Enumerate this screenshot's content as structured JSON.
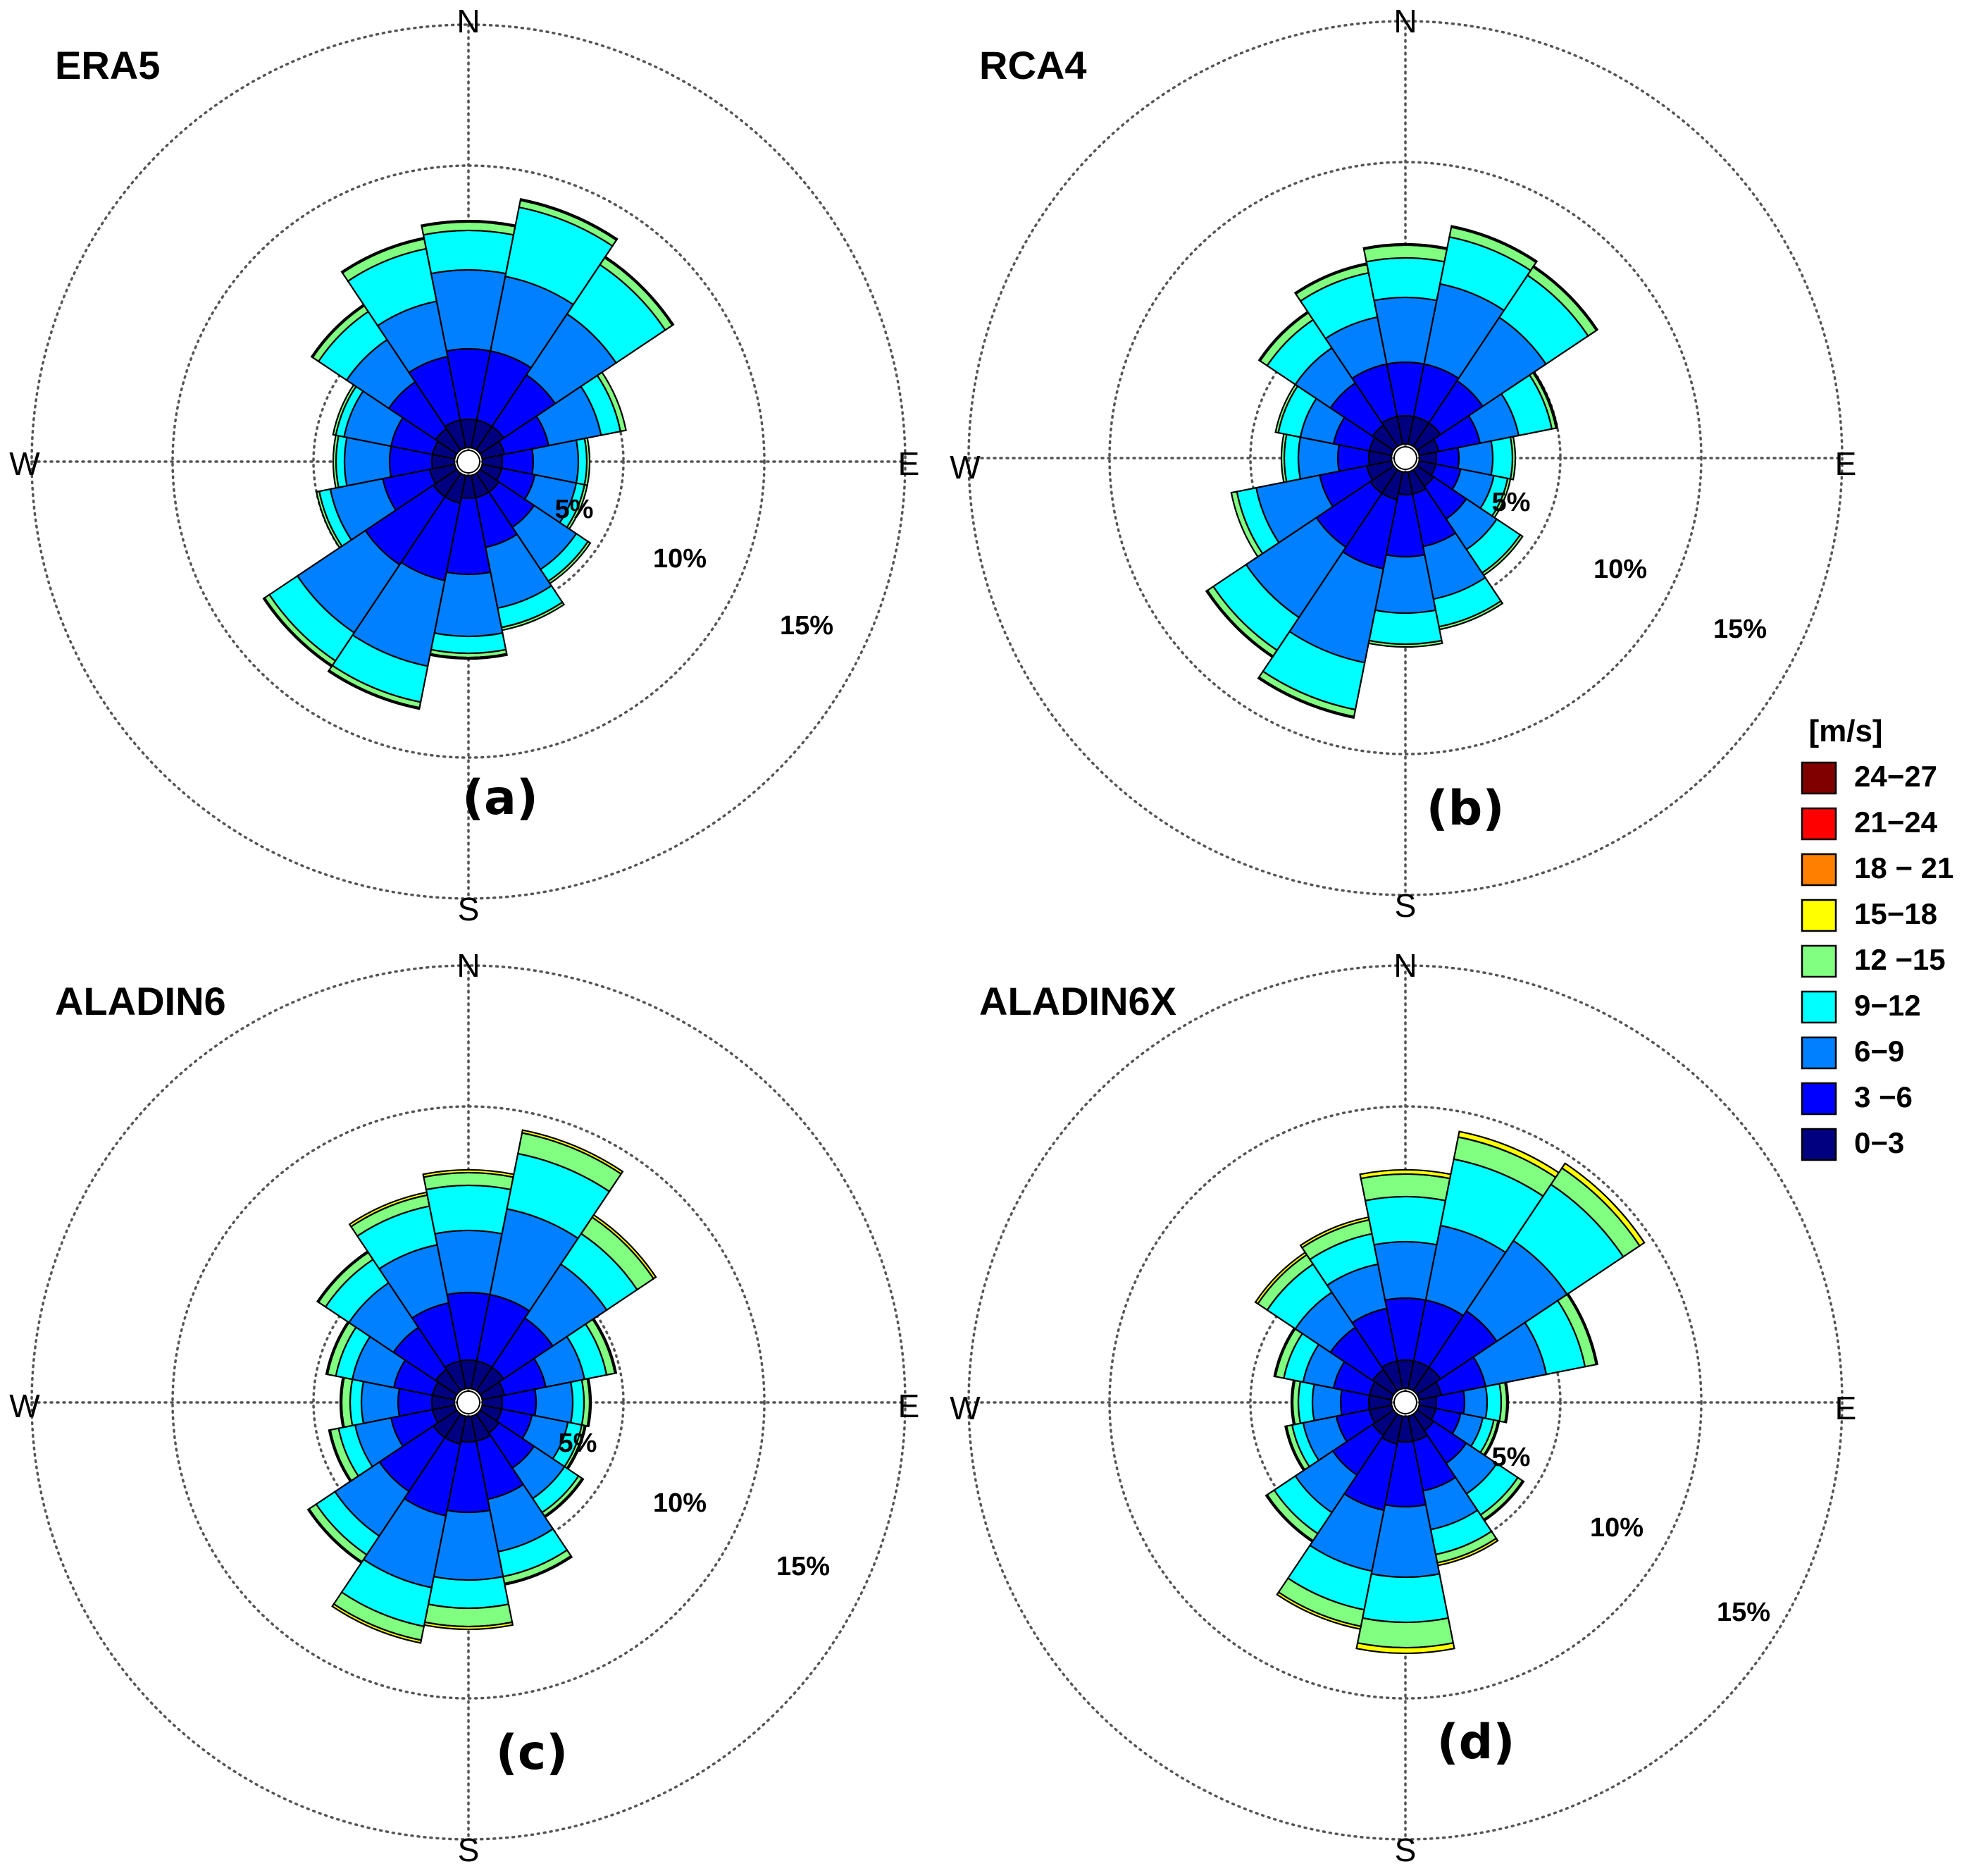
{
  "chart_data": [
    {
      "type": "windrose",
      "title": "ERA5",
      "panel_label": "(a)",
      "directions": [
        "N",
        "NNE",
        "NE",
        "ENE",
        "E",
        "ESE",
        "SE",
        "SSE",
        "S",
        "SSW",
        "SW",
        "WSW",
        "W",
        "WNW",
        "NW",
        "NNW"
      ],
      "compass_labels": [
        "N",
        "E",
        "S",
        "W"
      ],
      "ring_labels": [
        "5%",
        "10%",
        "15%"
      ],
      "radial_max_percent": 15,
      "speed_bins": [
        "0-3",
        "3-6",
        "6-9",
        "9-12",
        "12-15",
        "15-18",
        "18-21",
        "21-24",
        "24-27"
      ],
      "cumulative_percent": [
        [
          1.0,
          3.5,
          6.3,
          7.7,
          8.0,
          8.05,
          8.05,
          8.05,
          8.05
        ],
        [
          1.0,
          3.5,
          6.2,
          8.7,
          8.95,
          9.0,
          9.0,
          9.0,
          9.0
        ],
        [
          1.0,
          3.2,
          5.8,
          7.9,
          8.2,
          8.25,
          8.25,
          8.25,
          8.25
        ],
        [
          0.8,
          2.4,
          4.3,
          5.0,
          5.2,
          5.2,
          5.2,
          5.2,
          5.2
        ],
        [
          0.7,
          1.8,
          3.4,
          3.7,
          3.8,
          3.8,
          3.8,
          3.8,
          3.8
        ],
        [
          0.7,
          1.9,
          3.4,
          3.7,
          3.8,
          3.8,
          3.8,
          3.8,
          3.8
        ],
        [
          0.8,
          2.3,
          4.1,
          4.6,
          4.7,
          4.7,
          4.7,
          4.7,
          4.7
        ],
        [
          0.8,
          2.6,
          4.8,
          5.5,
          5.6,
          5.6,
          5.6,
          5.6,
          5.6
        ],
        [
          0.8,
          3.5,
          5.7,
          6.3,
          6.45,
          6.5,
          6.5,
          6.5,
          6.5
        ],
        [
          1.0,
          3.8,
          6.9,
          8.2,
          8.4,
          8.45,
          8.45,
          8.45,
          8.45
        ],
        [
          1.0,
          3.9,
          6.8,
          8.0,
          8.2,
          8.25,
          8.25,
          8.25,
          8.25
        ],
        [
          0.9,
          2.6,
          4.5,
          4.9,
          5.0,
          5.0,
          5.0,
          5.0,
          5.0
        ],
        [
          0.8,
          2.3,
          3.9,
          4.2,
          4.3,
          4.3,
          4.3,
          4.3,
          4.3
        ],
        [
          0.8,
          2.3,
          4.0,
          4.3,
          4.4,
          4.4,
          4.4,
          4.4,
          4.4
        ],
        [
          0.9,
          2.9,
          4.7,
          5.9,
          6.15,
          6.2,
          6.2,
          6.2,
          6.2
        ],
        [
          1.0,
          3.3,
          5.3,
          7.2,
          7.55,
          7.6,
          7.6,
          7.6,
          7.6
        ]
      ]
    },
    {
      "type": "windrose",
      "title": "RCA4",
      "panel_label": "(b)",
      "directions": [
        "N",
        "NNE",
        "NE",
        "ENE",
        "E",
        "ESE",
        "SE",
        "SSE",
        "S",
        "SSW",
        "SW",
        "WSW",
        "W",
        "WNW",
        "NW",
        "NNW"
      ],
      "compass_labels": [
        "N",
        "E",
        "S",
        "W"
      ],
      "ring_labels": [
        "5%",
        "10%",
        "15%"
      ],
      "radial_max_percent": 15,
      "speed_bins": [
        "0-3",
        "3-6",
        "6-9",
        "9-12",
        "12-15",
        "15-18",
        "18-21",
        "21-24",
        "24-27"
      ],
      "cumulative_percent": [
        [
          1.0,
          2.9,
          5.2,
          6.6,
          7.05,
          7.1,
          7.1,
          7.1,
          7.1
        ],
        [
          1.0,
          2.9,
          5.8,
          7.5,
          7.85,
          7.9,
          7.9,
          7.9,
          7.9
        ],
        [
          1.0,
          2.8,
          5.5,
          7.3,
          7.65,
          7.7,
          7.7,
          7.7,
          7.7
        ],
        [
          0.7,
          2.2,
          3.6,
          4.8,
          4.95,
          5.0,
          5.0,
          5.0,
          5.0
        ],
        [
          0.6,
          1.4,
          2.6,
          3.3,
          3.4,
          3.4,
          3.4,
          3.4,
          3.4
        ],
        [
          0.6,
          1.5,
          2.7,
          3.2,
          3.3,
          3.3,
          3.3,
          3.3,
          3.3
        ],
        [
          0.7,
          2.1,
          3.4,
          4.4,
          4.5,
          4.5,
          4.5,
          4.5,
          4.5
        ],
        [
          0.8,
          2.7,
          4.6,
          5.6,
          5.7,
          5.7,
          5.7,
          5.7,
          5.7
        ],
        [
          0.8,
          3.0,
          5.0,
          6.1,
          6.2,
          6.2,
          6.2,
          6.2,
          6.2
        ],
        [
          1.0,
          3.5,
          6.9,
          8.6,
          8.85,
          8.9,
          8.9,
          8.9,
          8.9
        ],
        [
          1.0,
          3.3,
          6.3,
          7.7,
          7.95,
          8.0,
          8.0,
          8.0,
          8.0
        ],
        [
          0.9,
          2.6,
          4.9,
          5.6,
          5.8,
          5.8,
          5.8,
          5.8,
          5.8
        ],
        [
          0.8,
          1.9,
          3.3,
          3.8,
          3.9,
          3.9,
          3.9,
          3.9,
          3.9
        ],
        [
          0.8,
          2.1,
          3.3,
          4.1,
          4.2,
          4.2,
          4.2,
          4.2,
          4.2
        ],
        [
          0.9,
          2.7,
          4.2,
          5.4,
          5.7,
          5.75,
          5.75,
          5.75,
          5.75
        ],
        [
          1.0,
          2.9,
          4.6,
          6.2,
          6.5,
          6.55,
          6.55,
          6.55,
          6.55
        ]
      ]
    },
    {
      "type": "windrose",
      "title": "ALADIN6",
      "panel_label": "(c)",
      "directions": [
        "N",
        "NNE",
        "NE",
        "ENE",
        "E",
        "ESE",
        "SE",
        "SSE",
        "S",
        "SSW",
        "SW",
        "WSW",
        "W",
        "WNW",
        "NW",
        "NNW"
      ],
      "compass_labels": [
        "N",
        "E",
        "S",
        "W"
      ],
      "ring_labels": [
        "5%",
        "10%",
        "15%"
      ],
      "radial_max_percent": 15,
      "speed_bins": [
        "0-3",
        "3-6",
        "6-9",
        "9-12",
        "12-15",
        "15-18",
        "18-21",
        "21-24",
        "24-27"
      ],
      "cumulative_percent": [
        [
          1.0,
          3.4,
          5.6,
          7.2,
          7.65,
          7.75,
          7.75,
          7.75,
          7.75
        ],
        [
          1.0,
          3.4,
          6.5,
          8.5,
          9.25,
          9.35,
          9.35,
          9.35,
          9.35
        ],
        [
          1.0,
          3.1,
          5.4,
          6.7,
          7.4,
          7.5,
          7.5,
          7.5,
          7.5
        ],
        [
          0.8,
          2.3,
          3.7,
          4.5,
          4.8,
          4.85,
          4.85,
          4.85,
          4.85
        ],
        [
          0.7,
          1.9,
          3.2,
          3.6,
          3.8,
          3.85,
          3.85,
          3.85,
          3.85
        ],
        [
          0.7,
          1.8,
          3.1,
          3.6,
          3.7,
          3.75,
          3.75,
          3.75,
          3.75
        ],
        [
          0.8,
          2.3,
          3.6,
          4.2,
          4.35,
          4.4,
          4.4,
          4.4,
          4.4
        ],
        [
          0.9,
          3.0,
          4.9,
          5.8,
          6.05,
          6.1,
          6.1,
          6.1,
          6.1
        ],
        [
          0.9,
          3.4,
          5.8,
          6.8,
          7.45,
          7.55,
          7.55,
          7.55,
          7.55
        ],
        [
          1.0,
          3.6,
          6.2,
          7.6,
          8.1,
          8.2,
          8.2,
          8.2,
          8.2
        ],
        [
          1.0,
          3.3,
          5.2,
          6.0,
          6.3,
          6.35,
          6.35,
          6.35,
          6.35
        ],
        [
          0.8,
          2.3,
          3.6,
          4.2,
          4.5,
          4.55,
          4.55,
          4.55,
          4.55
        ],
        [
          0.8,
          2.0,
          3.3,
          3.7,
          4.0,
          4.05,
          4.05,
          4.05,
          4.05
        ],
        [
          0.8,
          2.2,
          3.7,
          4.3,
          4.6,
          4.65,
          4.65,
          4.65,
          4.65
        ],
        [
          0.9,
          2.7,
          4.6,
          5.6,
          5.9,
          5.95,
          5.95,
          5.95,
          5.95
        ],
        [
          1.0,
          3.1,
          5.2,
          6.6,
          7.0,
          7.1,
          7.1,
          7.1,
          7.1
        ]
      ]
    },
    {
      "type": "windrose",
      "title": "ALADIN6X",
      "panel_label": "(d)",
      "directions": [
        "N",
        "NNE",
        "NE",
        "ENE",
        "E",
        "ESE",
        "SE",
        "SSE",
        "S",
        "SSW",
        "SW",
        "WSW",
        "W",
        "WNW",
        "NW",
        "NNW"
      ],
      "compass_labels": [
        "N",
        "E",
        "S",
        "W"
      ],
      "ring_labels": [
        "5%",
        "10%",
        "15%"
      ],
      "radial_max_percent": 15,
      "speed_bins": [
        "0-3",
        "3-6",
        "6-9",
        "9-12",
        "12-15",
        "15-18",
        "18-21",
        "21-24",
        "24-27"
      ],
      "cumulative_percent": [
        [
          1.0,
          3.2,
          5.2,
          6.8,
          7.6,
          7.75,
          7.75,
          7.75,
          7.75
        ],
        [
          1.0,
          3.2,
          5.9,
          8.3,
          9.1,
          9.3,
          9.3,
          9.3,
          9.3
        ],
        [
          1.0,
          3.4,
          6.4,
          8.8,
          9.5,
          9.7,
          9.7,
          9.7,
          9.7
        ],
        [
          0.8,
          2.4,
          4.6,
          6.0,
          6.4,
          6.45,
          6.45,
          6.45,
          6.45
        ],
        [
          0.6,
          1.6,
          2.4,
          2.9,
          3.1,
          3.15,
          3.15,
          3.15,
          3.15
        ],
        [
          0.6,
          1.5,
          2.3,
          2.7,
          2.85,
          2.9,
          2.9,
          2.9,
          2.9
        ],
        [
          0.7,
          2.1,
          3.4,
          4.3,
          4.5,
          4.55,
          4.55,
          4.55,
          4.55
        ],
        [
          0.9,
          2.7,
          4.1,
          5.0,
          5.3,
          5.4,
          5.4,
          5.4,
          5.4
        ],
        [
          0.9,
          3.2,
          5.7,
          7.3,
          8.2,
          8.4,
          8.4,
          8.4,
          8.4
        ],
        [
          1.0,
          3.4,
          5.6,
          7.0,
          7.6,
          7.7,
          7.7,
          7.7,
          7.7
        ],
        [
          0.9,
          2.6,
          4.2,
          5.1,
          5.4,
          5.45,
          5.45,
          5.45,
          5.45
        ],
        [
          0.8,
          2.0,
          3.2,
          3.6,
          3.8,
          3.85,
          3.85,
          3.85,
          3.85
        ],
        [
          0.8,
          1.8,
          2.8,
          3.3,
          3.5,
          3.55,
          3.55,
          3.55,
          3.55
        ],
        [
          0.8,
          2.1,
          3.2,
          3.9,
          4.2,
          4.25,
          4.25,
          4.25,
          4.25
        ],
        [
          0.9,
          2.7,
          4.2,
          5.4,
          5.8,
          5.9,
          5.9,
          5.9,
          5.9
        ],
        [
          1.0,
          2.9,
          4.5,
          5.6,
          6.1,
          6.2,
          6.2,
          6.2,
          6.2
        ]
      ]
    }
  ],
  "legend": {
    "title": "[m/s]",
    "items": [
      {
        "label": "24−27",
        "color": "#800000"
      },
      {
        "label": "21−24",
        "color": "#ff0000"
      },
      {
        "label": "18 − 21",
        "color": "#ff8000"
      },
      {
        "label": "15−18",
        "color": "#ffff00"
      },
      {
        "label": "12 −15",
        "color": "#80ff80"
      },
      {
        "label": "9−12",
        "color": "#00ffff"
      },
      {
        "label": "6−9",
        "color": "#0080ff"
      },
      {
        "label": "3 −6",
        "color": "#0000ff"
      },
      {
        "label": "0−3",
        "color": "#000080"
      }
    ]
  },
  "bin_colors": [
    "#000080",
    "#0000ff",
    "#0080ff",
    "#00ffff",
    "#80ff80",
    "#ffff00",
    "#ff8000",
    "#ff0000",
    "#800000"
  ]
}
